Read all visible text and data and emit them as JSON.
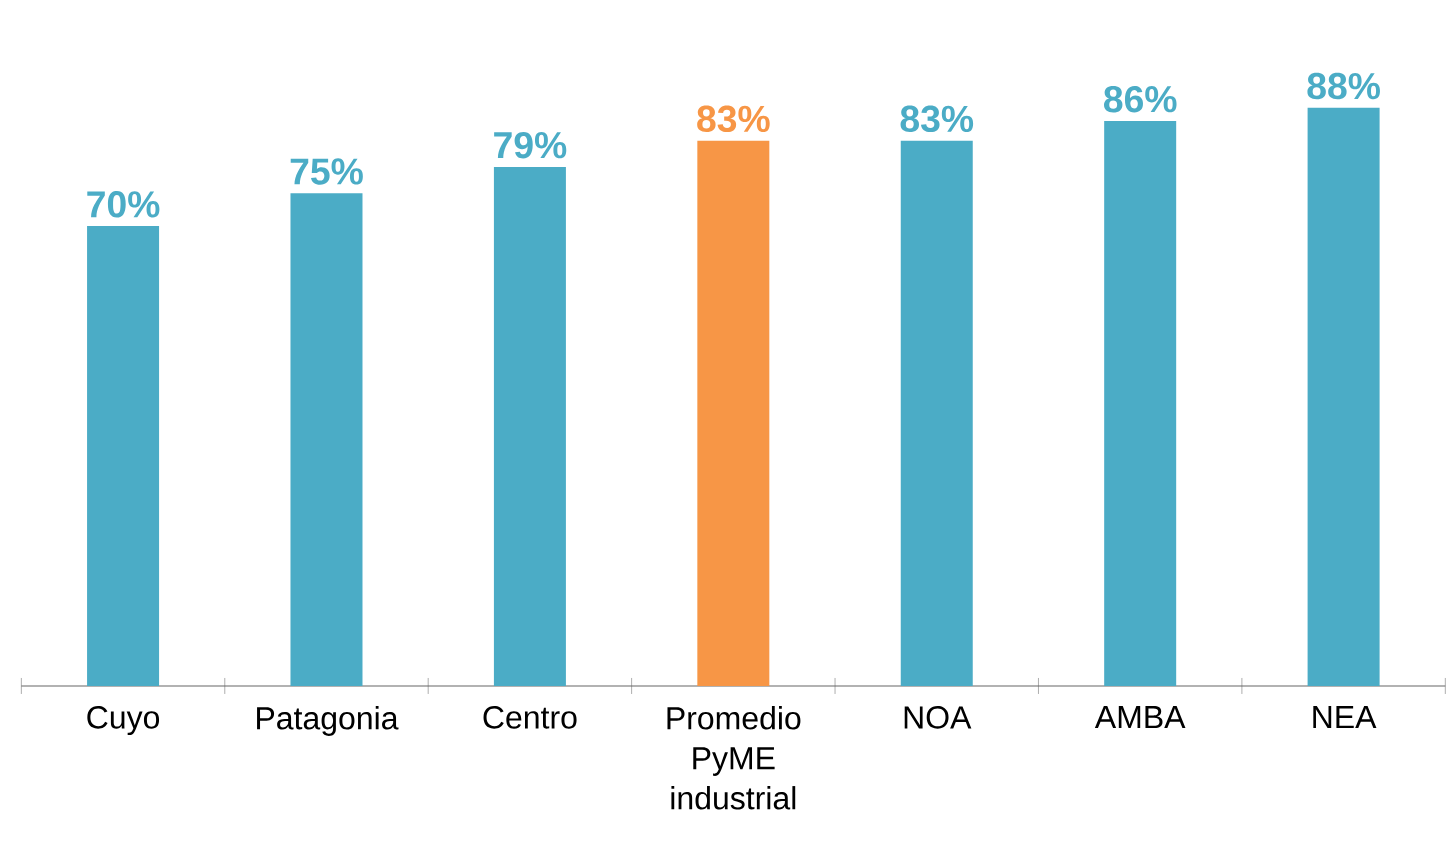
{
  "chart_data": {
    "type": "bar",
    "categories": [
      "Cuyo",
      "Patagonia",
      "Centro",
      "Promedio PyME industrial",
      "NOA",
      "AMBA",
      "NEA"
    ],
    "values": [
      70,
      75,
      79,
      83,
      83,
      86,
      88
    ],
    "colors": [
      "#4bacc6",
      "#4bacc6",
      "#4bacc6",
      "#f79646",
      "#4bacc6",
      "#4bacc6",
      "#4bacc6"
    ],
    "value_labels": [
      "70%",
      "75%",
      "79%",
      "83%",
      "83%",
      "86%",
      "88%"
    ]
  }
}
